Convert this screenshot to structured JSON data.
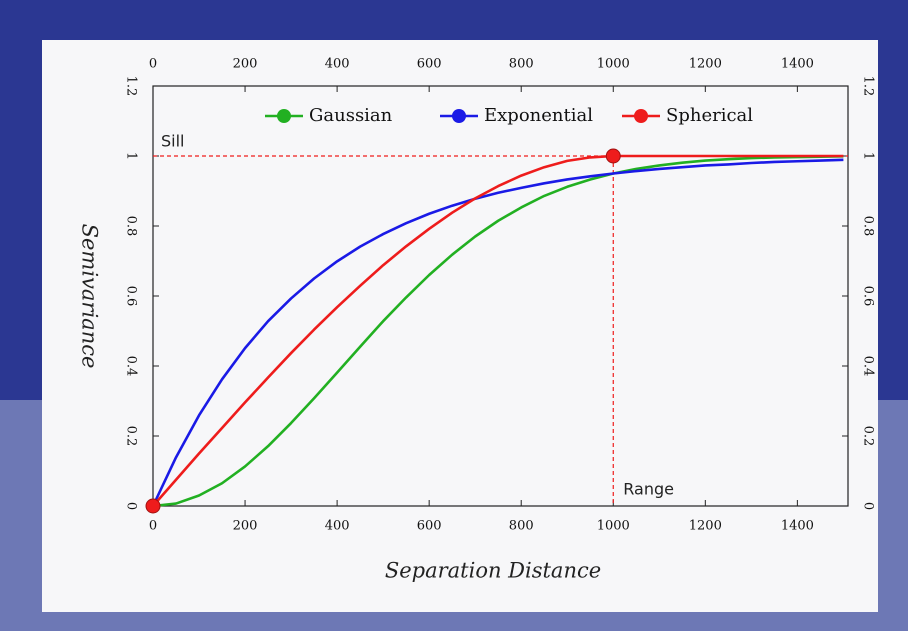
{
  "chart_data": {
    "type": "line",
    "x_label": "Separation Distance",
    "y_label": "Semivariance",
    "x": [
      0,
      50,
      100,
      150,
      200,
      250,
      300,
      350,
      400,
      450,
      500,
      550,
      600,
      650,
      700,
      750,
      800,
      850,
      900,
      950,
      1000,
      1050,
      1100,
      1150,
      1200,
      1250,
      1300,
      1350,
      1400,
      1450,
      1500
    ],
    "series": [
      {
        "name": "Gaussian",
        "color": "#22b022",
        "values": [
          0,
          0.007,
          0.03,
          0.065,
          0.113,
          0.171,
          0.237,
          0.308,
          0.381,
          0.455,
          0.528,
          0.596,
          0.66,
          0.718,
          0.77,
          0.815,
          0.853,
          0.886,
          0.912,
          0.933,
          0.95,
          0.963,
          0.973,
          0.981,
          0.987,
          0.991,
          0.994,
          0.996,
          0.997,
          0.998,
          0.999
        ]
      },
      {
        "name": "Exponential",
        "color": "#1a1ae6",
        "values": [
          0,
          0.139,
          0.259,
          0.362,
          0.451,
          0.528,
          0.593,
          0.65,
          0.699,
          0.741,
          0.777,
          0.808,
          0.835,
          0.858,
          0.878,
          0.895,
          0.909,
          0.922,
          0.933,
          0.942,
          0.95,
          0.957,
          0.963,
          0.968,
          0.973,
          0.976,
          0.98,
          0.983,
          0.985,
          0.987,
          0.989
        ]
      },
      {
        "name": "Spherical",
        "color": "#ee1c1c",
        "values": [
          0,
          0.075,
          0.15,
          0.223,
          0.296,
          0.367,
          0.437,
          0.504,
          0.568,
          0.629,
          0.688,
          0.742,
          0.792,
          0.838,
          0.879,
          0.914,
          0.944,
          0.968,
          0.986,
          0.996,
          1,
          1,
          1,
          1,
          1,
          1,
          1,
          1,
          1,
          1,
          1
        ]
      }
    ],
    "highlighted_points": {
      "x": [
        0,
        1000
      ],
      "y": [
        0,
        1
      ],
      "color": "#ee1c1c"
    },
    "annotations": {
      "sill": {
        "text": "Sill",
        "value": 1
      },
      "range": {
        "text": "Range",
        "value": 1000
      }
    },
    "xlim": [
      0,
      1510
    ],
    "ylim": [
      0,
      1.2
    ],
    "xticks": [
      0,
      200,
      400,
      600,
      800,
      1000,
      1200,
      1400
    ],
    "yticks": [
      0,
      0.2,
      0.4,
      0.6,
      0.8,
      1,
      1.2
    ]
  }
}
